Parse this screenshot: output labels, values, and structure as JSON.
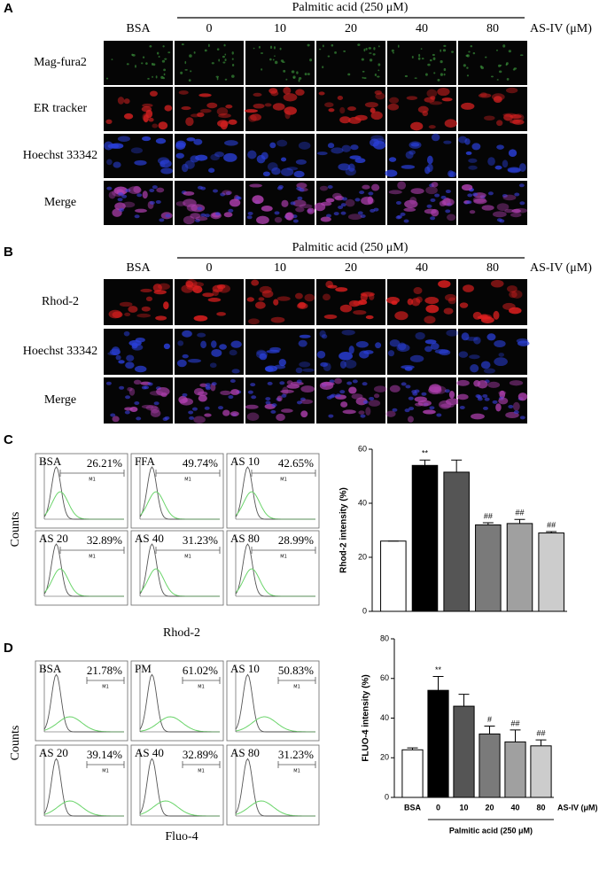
{
  "panels": {
    "A": {
      "label": "A",
      "group_title": "Palmitic acid (250 μM)",
      "control": "BSA",
      "doses": [
        "0",
        "10",
        "20",
        "40",
        "80"
      ],
      "dose_unit": "AS-IV (μM)",
      "rows": [
        "Mag-fura2",
        "ER tracker",
        "Hoechst 33342",
        "Merge"
      ]
    },
    "B": {
      "label": "B",
      "group_title": "Palmitic acid (250 μM)",
      "control": "BSA",
      "doses": [
        "0",
        "10",
        "20",
        "40",
        "80"
      ],
      "dose_unit": "AS-IV (μM)",
      "rows": [
        "Rhod-2",
        "Hoechst 33342",
        "Merge"
      ]
    },
    "C": {
      "label": "C",
      "y_label": "Counts",
      "x_label": "Rhod-2",
      "marker": "M1",
      "histograms": [
        {
          "name": "BSA",
          "percent": "26.21%"
        },
        {
          "name": "FFA",
          "percent": "49.74%"
        },
        {
          "name": "AS 10",
          "percent": "42.65%"
        },
        {
          "name": "AS 20",
          "percent": "32.89%"
        },
        {
          "name": "AS 40",
          "percent": "31.23%"
        },
        {
          "name": "AS 80",
          "percent": "28.99%"
        }
      ]
    },
    "D": {
      "label": "D",
      "y_label": "Counts",
      "x_label": "Fluo-4",
      "marker": "M1",
      "histograms": [
        {
          "name": "BSA",
          "percent": "21.78%"
        },
        {
          "name": "PM",
          "percent": "61.02%"
        },
        {
          "name": "AS 10",
          "percent": "50.83%"
        },
        {
          "name": "AS 20",
          "percent": "39.14%"
        },
        {
          "name": "AS 40",
          "percent": "32.89%"
        },
        {
          "name": "AS 80",
          "percent": "31.23%"
        }
      ]
    }
  },
  "chart_data": [
    {
      "type": "bar",
      "y_label": "Rhod-2 intensity (%)",
      "categories": [
        null,
        null,
        null,
        null,
        null,
        null
      ],
      "values": [
        26,
        54,
        51.5,
        32,
        32.5,
        29
      ],
      "errors": [
        0,
        2,
        4.5,
        0.8,
        1.5,
        0.5
      ],
      "annotations": [
        null,
        "**",
        null,
        "##",
        "##",
        "##"
      ],
      "colors": [
        "#ffffff",
        "#000000",
        "#555555",
        "#7a7a7a",
        "#a0a0a0",
        "#cccccc"
      ],
      "ylim": [
        0,
        60
      ],
      "yticks": [
        0,
        20,
        40,
        60
      ]
    },
    {
      "type": "bar",
      "y_label": "FLUO-4 intensity (%)",
      "categories": [
        "BSA",
        "0",
        "10",
        "20",
        "40",
        "80"
      ],
      "x_label": "AS-IV (μM)",
      "group_label": "Palmitic acid (250 μM)",
      "values": [
        24,
        54,
        46,
        32,
        28,
        26
      ],
      "errors": [
        1,
        7,
        6,
        4,
        6,
        3
      ],
      "annotations": [
        null,
        "**",
        null,
        "#",
        "##",
        "##"
      ],
      "colors": [
        "#ffffff",
        "#000000",
        "#555555",
        "#7a7a7a",
        "#a0a0a0",
        "#cccccc"
      ],
      "ylim": [
        0,
        80
      ],
      "yticks": [
        0,
        20,
        40,
        60,
        80
      ]
    }
  ]
}
